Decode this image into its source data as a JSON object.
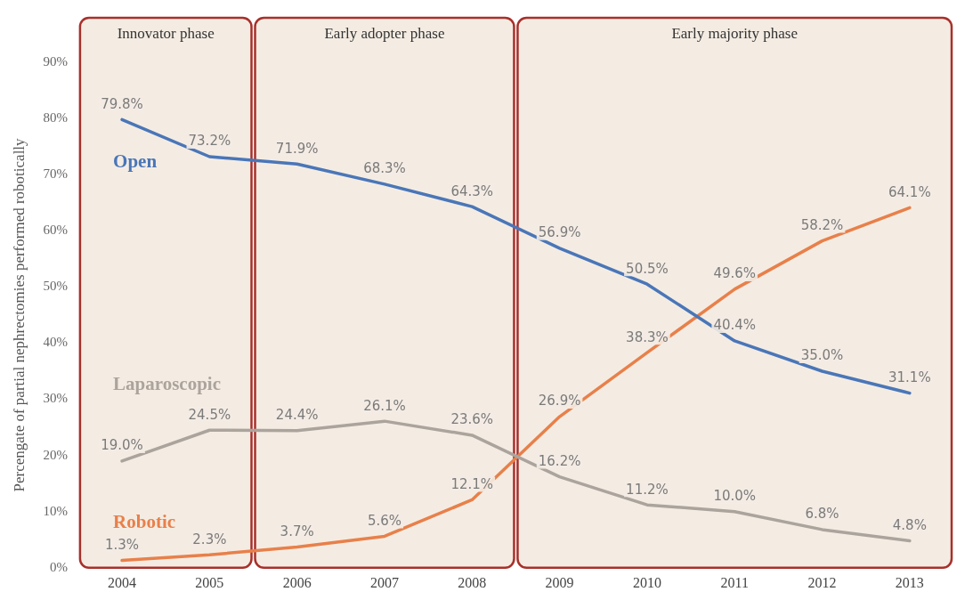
{
  "chart_data": {
    "type": "line",
    "ylabel": "Percengate of partial nephrectomies performed robotically",
    "categories": [
      "2004",
      "2005",
      "2006",
      "2007",
      "2008",
      "2009",
      "2010",
      "2011",
      "2012",
      "2013"
    ],
    "series": [
      {
        "name": "Open",
        "color": "#4a76b8",
        "values": [
          79.8,
          73.2,
          71.9,
          68.3,
          64.3,
          56.9,
          50.5,
          40.4,
          35.0,
          31.1
        ],
        "value_labels": [
          "79.8%",
          "73.2%",
          "71.9%",
          "68.3%",
          "64.3%",
          "56.9%",
          "50.5%",
          "40.4%",
          "35.0%",
          "31.1%"
        ]
      },
      {
        "name": "Laparoscopic",
        "color": "#aba49d",
        "values": [
          19.0,
          24.5,
          24.4,
          26.1,
          23.6,
          16.2,
          11.2,
          10.0,
          6.8,
          4.8
        ],
        "value_labels": [
          "19.0%",
          "24.5%",
          "24.4%",
          "26.1%",
          "23.6%",
          "16.2%",
          "11.2%",
          "10.0%",
          "6.8%",
          "4.8%"
        ]
      },
      {
        "name": "Robotic",
        "color": "#e8804a",
        "values": [
          1.3,
          2.3,
          3.7,
          5.6,
          12.1,
          26.9,
          38.3,
          49.6,
          58.2,
          64.1
        ],
        "value_labels": [
          "1.3%",
          "2.3%",
          "3.7%",
          "5.6%",
          "12.1%",
          "26.9%",
          "38.3%",
          "49.6%",
          "58.2%",
          "64.1%"
        ]
      }
    ],
    "ylim": [
      0,
      90
    ],
    "yticks": [
      {
        "value": 0,
        "label": "0%"
      },
      {
        "value": 10,
        "label": "10%"
      },
      {
        "value": 20,
        "label": "20%"
      },
      {
        "value": 30,
        "label": "30%"
      },
      {
        "value": 40,
        "label": "40%"
      },
      {
        "value": 50,
        "label": "50%"
      },
      {
        "value": 60,
        "label": "60%"
      },
      {
        "value": 70,
        "label": "70%"
      },
      {
        "value": 80,
        "label": "80%"
      },
      {
        "value": 90,
        "label": "90%"
      }
    ],
    "bands": [
      {
        "axis": "x",
        "from": "2004",
        "to": "2005",
        "label": "Innovator phase",
        "color": "#f4ece3"
      },
      {
        "axis": "x",
        "from": "2006",
        "to": "2008",
        "label": "Early adopter phase",
        "color": "#f4ece3"
      },
      {
        "axis": "x",
        "from": "2009",
        "to": "2013",
        "label": "Early majority phase",
        "color": "#f4ece3"
      }
    ],
    "grid": false,
    "legend": false,
    "marker": "none",
    "line_style": "solid"
  }
}
